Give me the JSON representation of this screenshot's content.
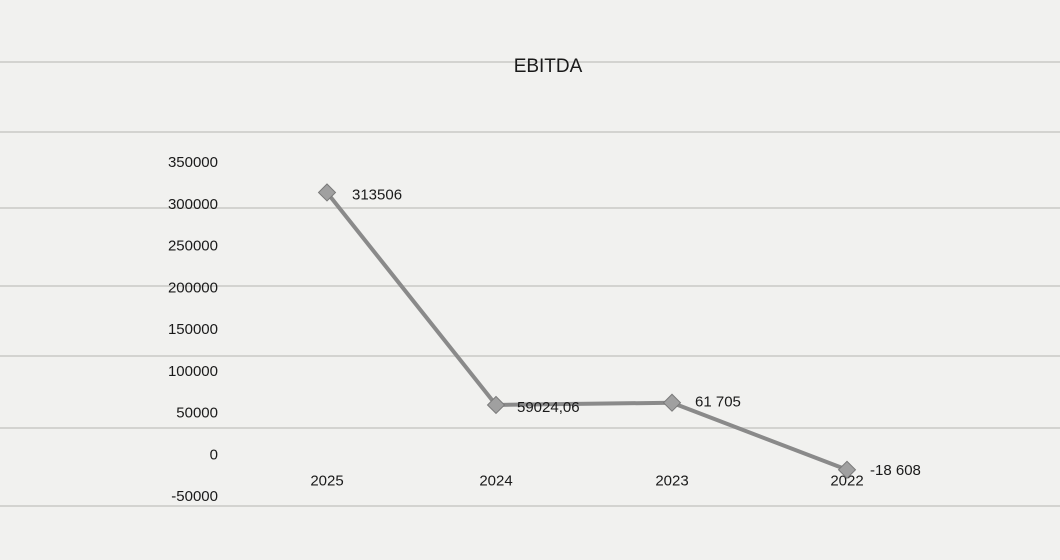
{
  "chart_data": {
    "type": "line",
    "title": "EBITDA",
    "categories": [
      "2025",
      "2024",
      "2023",
      "2022"
    ],
    "values": [
      313506,
      59024.06,
      61705,
      -18608
    ],
    "data_labels": [
      "313506",
      "59024,06",
      "61 705",
      "-18 608"
    ],
    "y_ticks": [
      350000,
      300000,
      250000,
      200000,
      150000,
      100000,
      50000,
      0,
      -50000
    ],
    "ylim": [
      -50000,
      350000
    ],
    "grid": false,
    "legend": false,
    "colors": {
      "line": "#8a8a8a",
      "marker": "#a0a0a0",
      "background": "#f1f1ef"
    }
  }
}
